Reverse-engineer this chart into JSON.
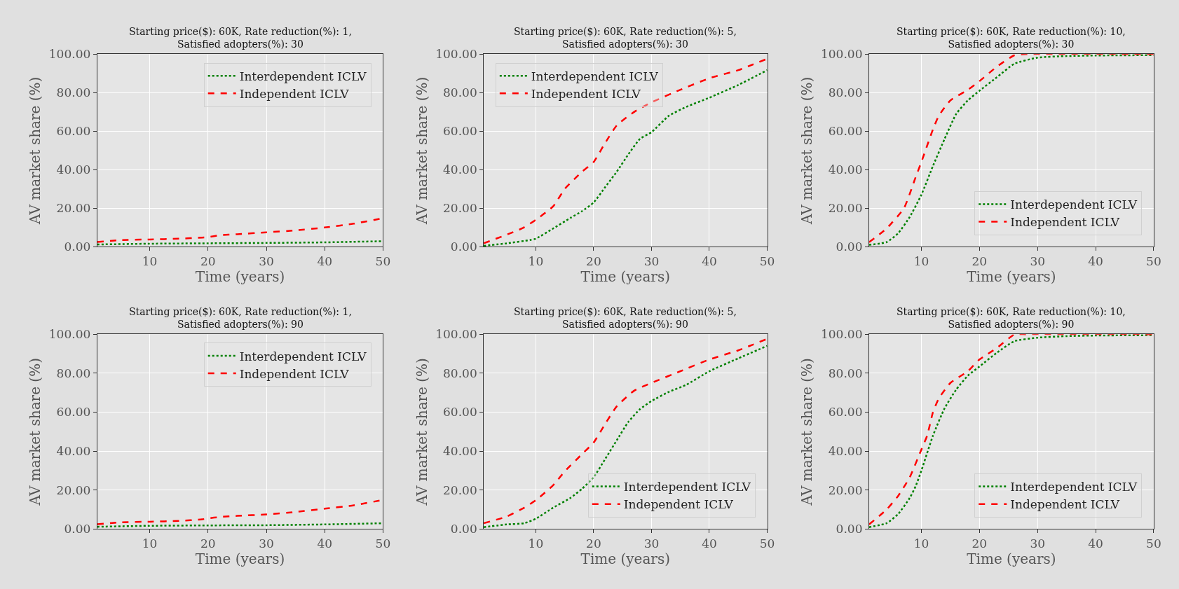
{
  "chart_data": [
    {
      "type": "line",
      "title": "Starting price($): 60K, Rate reduction(%): 1,\nSatisfied adopters(%): 30",
      "xlabel": "Time (years)",
      "ylabel": "AV market share (%)",
      "xlim": [
        1,
        50
      ],
      "xticks": [
        10,
        20,
        30,
        40,
        50
      ],
      "ylim": [
        0,
        100
      ],
      "yticks": [
        {
          "value": 0,
          "label": "0.00"
        },
        {
          "value": 20,
          "label": "20.00"
        },
        {
          "value": 40,
          "label": "40.00"
        },
        {
          "value": 60,
          "label": "60.00"
        },
        {
          "value": 80,
          "label": "80.00"
        },
        {
          "value": 100,
          "label": "100.00"
        }
      ],
      "grid": true,
      "legend": "top right",
      "series": [
        {
          "name": "Interdependent ICLV",
          "color": "#008000",
          "line_style": "dotted",
          "x": [
            1,
            10,
            20,
            30,
            40,
            50
          ],
          "values": [
            1.2,
            1.6,
            1.8,
            2.0,
            2.3,
            2.9
          ]
        },
        {
          "name": "Independent ICLV",
          "color": "#ff0000",
          "line_style": "dashed",
          "x": [
            1,
            5,
            10,
            15,
            19,
            20,
            22,
            25,
            30,
            35,
            40,
            45,
            50
          ],
          "values": [
            2.5,
            3.5,
            3.8,
            4.2,
            4.8,
            5.0,
            6.0,
            6.5,
            7.5,
            8.5,
            10.0,
            12.0,
            14.8
          ]
        }
      ]
    },
    {
      "type": "line",
      "title": "Starting price($): 60K, Rate reduction(%): 5,\nSatisfied adopters(%): 30",
      "xlabel": "Time (years)",
      "ylabel": "AV market share (%)",
      "xlim": [
        1,
        50
      ],
      "xticks": [
        10,
        20,
        30,
        40,
        50
      ],
      "ylim": [
        0,
        100
      ],
      "yticks": [
        {
          "value": 0,
          "label": "0.00"
        },
        {
          "value": 20,
          "label": "20.00"
        },
        {
          "value": 40,
          "label": "40.00"
        },
        {
          "value": 60,
          "label": "60.00"
        },
        {
          "value": 80,
          "label": "80.00"
        },
        {
          "value": 100,
          "label": "100.00"
        }
      ],
      "grid": true,
      "legend": "top left",
      "series": [
        {
          "name": "Interdependent ICLV",
          "color": "#008000",
          "line_style": "dotted",
          "x": [
            1,
            5,
            9,
            10,
            13,
            16,
            18,
            20,
            22,
            24,
            26,
            28,
            30,
            33,
            36,
            40,
            45,
            50
          ],
          "values": [
            0.5,
            1.8,
            3.5,
            4.2,
            9.5,
            15,
            18.5,
            23,
            31,
            39,
            48,
            56,
            59.5,
            68,
            72.6,
            77.4,
            84,
            91.7
          ]
        },
        {
          "name": "Independent ICLV",
          "color": "#ff0000",
          "line_style": "dashed",
          "x": [
            1,
            7.6,
            10,
            13,
            15,
            18,
            20,
            22,
            24,
            27,
            30,
            35,
            40,
            45,
            50
          ],
          "values": [
            1.8,
            9.5,
            14,
            21,
            30,
            39,
            44,
            54,
            63,
            70,
            75,
            81.5,
            87.5,
            91.7,
            97.6
          ]
        }
      ]
    },
    {
      "type": "line",
      "title": "Starting price($): 60K, Rate reduction(%): 10,\nSatisfied adopters(%): 30",
      "xlabel": "Time (years)",
      "ylabel": "AV market share (%)",
      "xlim": [
        1,
        50
      ],
      "xticks": [
        10,
        20,
        30,
        40,
        50
      ],
      "ylim": [
        0,
        100
      ],
      "yticks": [
        {
          "value": 0,
          "label": "0.00"
        },
        {
          "value": 20,
          "label": "20.00"
        },
        {
          "value": 40,
          "label": "40.00"
        },
        {
          "value": 60,
          "label": "60.00"
        },
        {
          "value": 80,
          "label": "80.00"
        },
        {
          "value": 100,
          "label": "100.00"
        }
      ],
      "grid": true,
      "legend": "bottom right",
      "series": [
        {
          "name": "Interdependent ICLV",
          "color": "#008000",
          "line_style": "dotted",
          "x": [
            1,
            4,
            6,
            8,
            10,
            12,
            14,
            16,
            18,
            20,
            23,
            26,
            30,
            35,
            40,
            50
          ],
          "values": [
            1,
            2.4,
            7,
            15.5,
            27,
            42,
            56,
            69,
            76,
            81,
            88,
            95,
            98.2,
            99,
            99.3,
            99.5
          ]
        },
        {
          "name": "Independent ICLV",
          "color": "#ff0000",
          "line_style": "dashed",
          "x": [
            1,
            4,
            7,
            9,
            10,
            12,
            13,
            15,
            18,
            20,
            23,
            26,
            28,
            50
          ],
          "values": [
            2.4,
            9.5,
            20,
            36,
            44,
            61,
            68,
            76,
            81.5,
            86,
            93.5,
            99.4,
            100,
            100
          ]
        }
      ]
    },
    {
      "type": "line",
      "title": "Starting price($): 60K, Rate reduction(%): 1,\nSatisfied adopters(%): 90",
      "xlabel": "Time (years)",
      "ylabel": "AV market share (%)",
      "xlim": [
        1,
        50
      ],
      "xticks": [
        10,
        20,
        30,
        40,
        50
      ],
      "ylim": [
        0,
        100
      ],
      "yticks": [
        {
          "value": 0,
          "label": "0.00"
        },
        {
          "value": 20,
          "label": "20.00"
        },
        {
          "value": 40,
          "label": "40.00"
        },
        {
          "value": 60,
          "label": "60.00"
        },
        {
          "value": 80,
          "label": "80.00"
        },
        {
          "value": 100,
          "label": "100.00"
        }
      ],
      "grid": true,
      "legend": "top right",
      "series": [
        {
          "name": "Interdependent ICLV",
          "color": "#008000",
          "line_style": "dotted",
          "x": [
            1,
            10,
            20,
            30,
            40,
            50
          ],
          "values": [
            1.2,
            1.7,
            1.9,
            2.0,
            2.4,
            3.0
          ]
        },
        {
          "name": "Independent ICLV",
          "color": "#ff0000",
          "line_style": "dashed",
          "x": [
            1,
            5,
            10,
            15,
            19,
            20,
            22,
            25,
            30,
            35,
            40,
            45,
            50
          ],
          "values": [
            2.5,
            3.5,
            3.8,
            4.2,
            5.0,
            5.5,
            6.2,
            6.8,
            7.5,
            8.8,
            10.5,
            12.2,
            15.0
          ]
        }
      ]
    },
    {
      "type": "line",
      "title": "Starting price($): 60K, Rate reduction(%): 5,\nSatisfied adopters(%): 90",
      "xlabel": "Time (years)",
      "ylabel": "AV market share (%)",
      "xlim": [
        1,
        50
      ],
      "xticks": [
        10,
        20,
        30,
        40,
        50
      ],
      "ylim": [
        0,
        100
      ],
      "yticks": [
        {
          "value": 0,
          "label": "0.00"
        },
        {
          "value": 20,
          "label": "20.00"
        },
        {
          "value": 40,
          "label": "40.00"
        },
        {
          "value": 60,
          "label": "60.00"
        },
        {
          "value": 80,
          "label": "80.00"
        },
        {
          "value": 100,
          "label": "100.00"
        }
      ],
      "grid": true,
      "legend": "bottom right",
      "series": [
        {
          "name": "Interdependent ICLV",
          "color": "#008000",
          "line_style": "dotted",
          "x": [
            1,
            5,
            8,
            10,
            13,
            16,
            18,
            20,
            22,
            24,
            26,
            28,
            30,
            33,
            36,
            40,
            45,
            50
          ],
          "values": [
            1,
            2.4,
            3,
            5.3,
            11,
            16,
            20.7,
            26.6,
            36,
            45.6,
            55,
            61.5,
            65.7,
            70.4,
            74,
            81,
            87.6,
            94
          ]
        },
        {
          "name": "Independent ICLV",
          "color": "#ff0000",
          "line_style": "dashed",
          "x": [
            1,
            5,
            8,
            10,
            13,
            15,
            18,
            20,
            22,
            24,
            27,
            30,
            35,
            40,
            45,
            50
          ],
          "values": [
            3,
            6.5,
            11,
            14.8,
            22.5,
            29.6,
            38.5,
            44.4,
            54,
            63,
            71,
            75,
            81,
            87,
            91.7,
            97.6
          ]
        }
      ]
    },
    {
      "type": "line",
      "title": "Starting price($): 60K, Rate reduction(%): 10,\nSatisfied adopters(%): 90",
      "xlabel": "Time (years)",
      "ylabel": "AV market share (%)",
      "xlim": [
        1,
        50
      ],
      "xticks": [
        10,
        20,
        30,
        40,
        50
      ],
      "ylim": [
        0,
        100
      ],
      "yticks": [
        {
          "value": 0,
          "label": "0.00"
        },
        {
          "value": 20,
          "label": "20.00"
        },
        {
          "value": 40,
          "label": "40.00"
        },
        {
          "value": 60,
          "label": "60.00"
        },
        {
          "value": 80,
          "label": "80.00"
        },
        {
          "value": 100,
          "label": "100.00"
        }
      ],
      "grid": true,
      "legend": "bottom right",
      "series": [
        {
          "name": "Interdependent ICLV",
          "color": "#008000",
          "line_style": "dotted",
          "x": [
            1,
            4,
            6,
            8,
            9,
            10,
            12,
            14,
            16,
            18,
            20,
            23,
            26,
            30,
            35,
            40,
            50
          ],
          "values": [
            1,
            3,
            7.7,
            16,
            21.9,
            30,
            48,
            62,
            71.6,
            78.7,
            83.4,
            90.5,
            96.4,
            98.2,
            99,
            99.3,
            99.5
          ]
        },
        {
          "name": "Independent ICLV",
          "color": "#ff0000",
          "line_style": "dashed",
          "x": [
            1,
            4,
            6,
            8,
            10,
            11,
            12,
            13,
            15,
            18,
            20,
            23,
            26,
            28,
            50
          ],
          "values": [
            2.4,
            10,
            17,
            26.6,
            40.8,
            48,
            60,
            67,
            75,
            81,
            87,
            92.9,
            99.8,
            100,
            100
          ]
        }
      ]
    }
  ]
}
